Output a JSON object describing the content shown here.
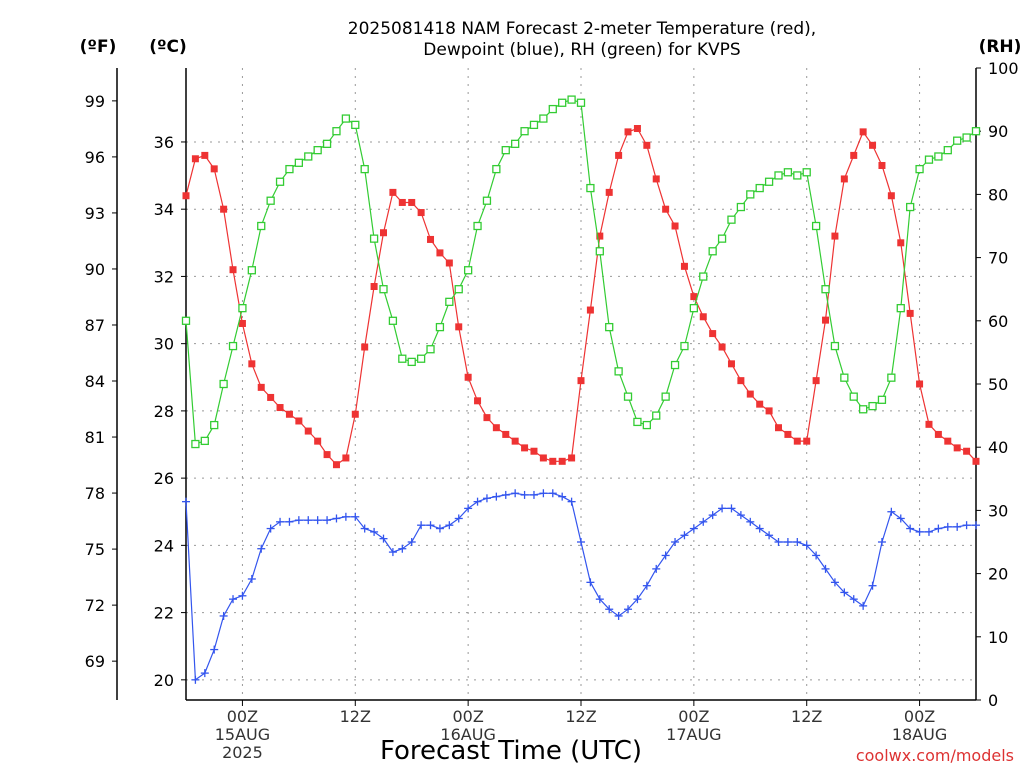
{
  "chart_data": {
    "type": "line",
    "title_line1": "2025081418 NAM Forecast 2-meter Temperature (red),",
    "title_line2": "Dewpoint (blue), RH (green) for KVPS",
    "left_axis_f_label": "(ºF)",
    "left_axis_c_label": "(ºC)",
    "right_axis_label": "(RH)",
    "xlabel": "Forecast Time (UTC)",
    "credit": "coolwx.com/models",
    "forecast_hour_range": [
      0,
      84
    ],
    "celsius_range": [
      19.4,
      38.2
    ],
    "rh_range": [
      0,
      100
    ],
    "grid": true,
    "f_ticks": [
      99,
      96,
      93,
      90,
      87,
      84,
      81,
      78,
      75,
      72,
      69
    ],
    "c_ticks": [
      36,
      34,
      32,
      30,
      28,
      26,
      24,
      22,
      20
    ],
    "rh_ticks": [
      100,
      90,
      80,
      70,
      60,
      50,
      40,
      30,
      20,
      10,
      0
    ],
    "x_ticks": [
      {
        "hour": 6,
        "label1": "00Z",
        "label2": "15AUG",
        "label3": "2025"
      },
      {
        "hour": 18,
        "label1": "12Z",
        "label2": "",
        "label3": ""
      },
      {
        "hour": 30,
        "label1": "00Z",
        "label2": "16AUG",
        "label3": ""
      },
      {
        "hour": 42,
        "label1": "12Z",
        "label2": "",
        "label3": ""
      },
      {
        "hour": 54,
        "label1": "00Z",
        "label2": "17AUG",
        "label3": ""
      },
      {
        "hour": 66,
        "label1": "12Z",
        "label2": "",
        "label3": ""
      },
      {
        "hour": 78,
        "label1": "00Z",
        "label2": "18AUG",
        "label3": ""
      }
    ],
    "hours": [
      0,
      1,
      2,
      3,
      4,
      5,
      6,
      7,
      8,
      9,
      10,
      11,
      12,
      13,
      14,
      15,
      16,
      17,
      18,
      19,
      20,
      21,
      22,
      23,
      24,
      25,
      26,
      27,
      28,
      29,
      30,
      31,
      32,
      33,
      34,
      35,
      36,
      37,
      38,
      39,
      40,
      41,
      42,
      43,
      44,
      45,
      46,
      47,
      48,
      49,
      50,
      51,
      52,
      53,
      54,
      55,
      56,
      57,
      58,
      59,
      60,
      61,
      62,
      63,
      64,
      65,
      66,
      67,
      68,
      69,
      70,
      71,
      72,
      73,
      74,
      75,
      76,
      77,
      78,
      79,
      80,
      81,
      82,
      83,
      84
    ],
    "series": [
      {
        "name": "Temperature",
        "unit": "C",
        "color": "#ee3333",
        "marker": "filled-square",
        "values": [
          34.4,
          35.5,
          35.6,
          35.2,
          34.0,
          32.2,
          30.6,
          29.4,
          28.7,
          28.4,
          28.1,
          27.9,
          27.7,
          27.4,
          27.1,
          26.7,
          26.4,
          26.6,
          27.9,
          29.9,
          31.7,
          33.3,
          34.5,
          34.2,
          34.2,
          33.9,
          33.1,
          32.7,
          32.4,
          30.5,
          29.0,
          28.3,
          27.8,
          27.5,
          27.3,
          27.1,
          26.9,
          26.8,
          26.6,
          26.5,
          26.5,
          26.6,
          28.9,
          31.0,
          33.2,
          34.5,
          35.6,
          36.3,
          36.4,
          35.9,
          34.9,
          34.0,
          33.5,
          32.3,
          31.4,
          30.8,
          30.3,
          29.9,
          29.4,
          28.9,
          28.5,
          28.2,
          28.0,
          27.5,
          27.3,
          27.1,
          27.1,
          28.9,
          30.7,
          33.2,
          34.9,
          35.6,
          36.3,
          35.9,
          35.3,
          34.4,
          33.0,
          30.9,
          28.8,
          27.6,
          27.3,
          27.1,
          26.9,
          26.8,
          26.5
        ]
      },
      {
        "name": "Dewpoint",
        "unit": "C",
        "color": "#3355ee",
        "marker": "plus",
        "values": [
          25.3,
          20.0,
          20.2,
          20.9,
          21.9,
          22.4,
          22.5,
          23.0,
          23.9,
          24.5,
          24.7,
          24.7,
          24.75,
          24.75,
          24.75,
          24.75,
          24.8,
          24.85,
          24.85,
          24.5,
          24.4,
          24.2,
          23.8,
          23.9,
          24.1,
          24.6,
          24.6,
          24.5,
          24.6,
          24.8,
          25.1,
          25.3,
          25.4,
          25.45,
          25.5,
          25.55,
          25.5,
          25.5,
          25.55,
          25.55,
          25.45,
          25.3,
          24.1,
          22.9,
          22.4,
          22.1,
          21.9,
          22.1,
          22.4,
          22.8,
          23.3,
          23.7,
          24.1,
          24.3,
          24.5,
          24.7,
          24.9,
          25.1,
          25.1,
          24.9,
          24.7,
          24.5,
          24.3,
          24.1,
          24.1,
          24.1,
          24.0,
          23.7,
          23.3,
          22.9,
          22.6,
          22.4,
          22.2,
          22.8,
          24.1,
          25.0,
          24.8,
          24.5,
          24.4,
          24.4,
          24.5,
          24.55,
          24.55,
          24.6,
          24.6
        ]
      },
      {
        "name": "RH",
        "unit": "%",
        "color": "#33cc33",
        "marker": "open-square",
        "values": [
          60,
          40.5,
          41,
          43.5,
          50,
          56,
          62,
          68,
          75,
          79,
          82,
          84,
          85,
          86,
          87,
          88,
          90,
          92,
          91,
          84,
          73,
          65,
          60,
          54,
          53.5,
          54,
          55.5,
          59,
          63,
          65,
          68,
          75,
          79,
          84,
          87,
          88,
          90,
          91,
          92,
          93.5,
          94.5,
          95,
          94.5,
          81,
          71,
          59,
          52,
          48,
          44,
          43.5,
          45,
          48,
          53,
          56,
          62,
          67,
          71,
          73,
          76,
          78,
          80,
          81,
          82,
          83,
          83.5,
          83,
          83.5,
          75,
          65,
          56,
          51,
          48,
          46,
          46.5,
          47.5,
          51,
          62,
          78,
          84,
          85.5,
          86,
          87,
          88.5,
          89,
          90
        ]
      }
    ]
  }
}
